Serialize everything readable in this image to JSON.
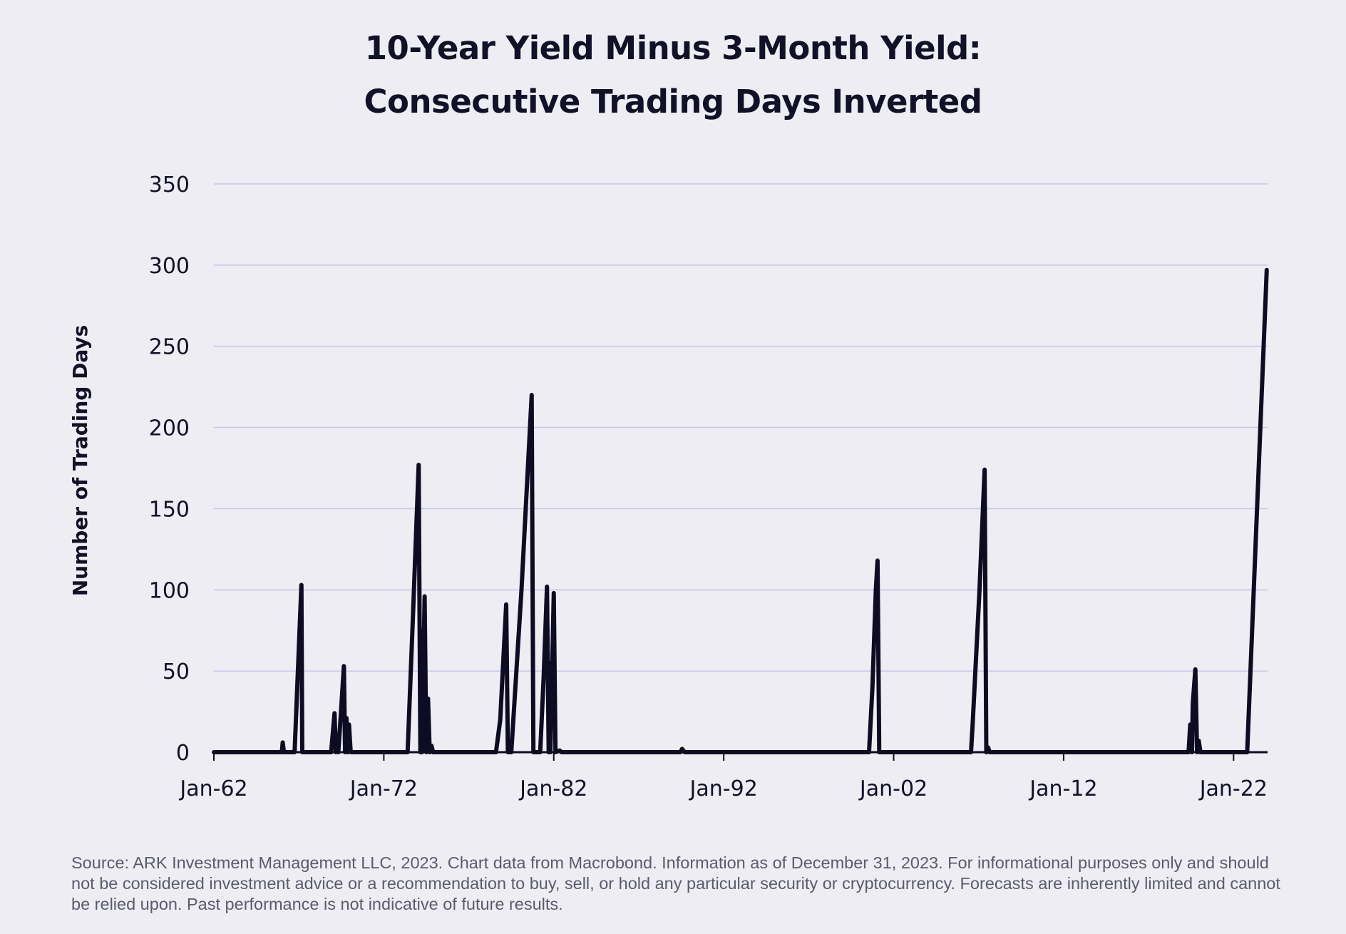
{
  "title_line1": "10-Year Yield Minus 3-Month Yield:",
  "title_line2": "Consecutive Trading Days Inverted",
  "source_note": "Source: ARK Investment Management LLC, 2023. Chart data from Macrobond. Information as of December 31, 2023. For informational purposes only and should not be considered investment advice or a recommendation to buy, sell, or hold any particular security or cryptocurrency. Forecasts are inherently limited and cannot be relied upon. Past performance is not indicative of future results.",
  "colors": {
    "background": "#ededf3",
    "line": "#0d0c22",
    "grid": "#c9c8ec",
    "text": "#111128",
    "source": "#5a5b6e"
  },
  "chart_data": {
    "type": "line",
    "title": "10-Year Yield Minus 3-Month Yield: Consecutive Trading Days Inverted",
    "xlabel": "",
    "ylabel": "Number of Trading Days",
    "ylim": [
      0,
      350
    ],
    "xlim": [
      "1962-01",
      "2024-01"
    ],
    "yticks": [
      0,
      50,
      100,
      150,
      200,
      250,
      300,
      350
    ],
    "xticks": [
      {
        "label": "Jan-62",
        "x": 1962.0
      },
      {
        "label": "Jan-72",
        "x": 1972.0
      },
      {
        "label": "Jan-82",
        "x": 1982.0
      },
      {
        "label": "Jan-92",
        "x": 1992.0
      },
      {
        "label": "Jan-02",
        "x": 2002.0
      },
      {
        "label": "Jan-12",
        "x": 2012.0
      },
      {
        "label": "Jan-22",
        "x": 2022.0
      }
    ],
    "grid": "horizontal",
    "series": [
      {
        "points": [
          [
            1962.0,
            0
          ],
          [
            1966.0,
            0
          ],
          [
            1966.05,
            6
          ],
          [
            1966.12,
            0
          ],
          [
            1966.75,
            0
          ],
          [
            1967.15,
            103
          ],
          [
            1967.2,
            0
          ],
          [
            1968.9,
            0
          ],
          [
            1969.1,
            24
          ],
          [
            1969.18,
            0
          ],
          [
            1969.25,
            9
          ],
          [
            1969.32,
            0
          ],
          [
            1969.45,
            20
          ],
          [
            1969.65,
            53
          ],
          [
            1969.72,
            0
          ],
          [
            1969.8,
            21
          ],
          [
            1969.88,
            0
          ],
          [
            1969.95,
            17
          ],
          [
            1970.05,
            0
          ],
          [
            1973.4,
            0
          ],
          [
            1973.7,
            80
          ],
          [
            1974.05,
            177
          ],
          [
            1974.15,
            0
          ],
          [
            1974.2,
            75
          ],
          [
            1974.25,
            0
          ],
          [
            1974.4,
            96
          ],
          [
            1974.5,
            0
          ],
          [
            1974.6,
            33
          ],
          [
            1974.7,
            0
          ],
          [
            1974.8,
            4
          ],
          [
            1974.9,
            0
          ],
          [
            1978.6,
            0
          ],
          [
            1978.85,
            20
          ],
          [
            1979.2,
            91
          ],
          [
            1979.3,
            0
          ],
          [
            1979.5,
            0
          ],
          [
            1980.1,
            100
          ],
          [
            1980.7,
            220
          ],
          [
            1980.8,
            0
          ],
          [
            1981.2,
            0
          ],
          [
            1981.4,
            45
          ],
          [
            1981.6,
            102
          ],
          [
            1981.7,
            0
          ],
          [
            1981.75,
            55
          ],
          [
            1981.8,
            0
          ],
          [
            1982.0,
            98
          ],
          [
            1982.1,
            0
          ],
          [
            1982.35,
            1
          ],
          [
            1982.45,
            0
          ],
          [
            1989.45,
            0
          ],
          [
            1989.55,
            2
          ],
          [
            1989.7,
            0
          ],
          [
            2000.55,
            0
          ],
          [
            2000.75,
            40
          ],
          [
            2000.95,
            100
          ],
          [
            2001.05,
            118
          ],
          [
            2001.15,
            0
          ],
          [
            2006.55,
            0
          ],
          [
            2006.65,
            18
          ],
          [
            2007.05,
            100
          ],
          [
            2007.35,
            174
          ],
          [
            2007.45,
            0
          ],
          [
            2007.55,
            3
          ],
          [
            2007.65,
            0
          ],
          [
            2019.35,
            0
          ],
          [
            2019.45,
            17
          ],
          [
            2019.55,
            0
          ],
          [
            2019.6,
            30
          ],
          [
            2019.75,
            51
          ],
          [
            2019.85,
            0
          ],
          [
            2019.95,
            7
          ],
          [
            2020.05,
            0
          ],
          [
            2022.8,
            0
          ],
          [
            2023.95,
            297
          ]
        ]
      }
    ]
  }
}
